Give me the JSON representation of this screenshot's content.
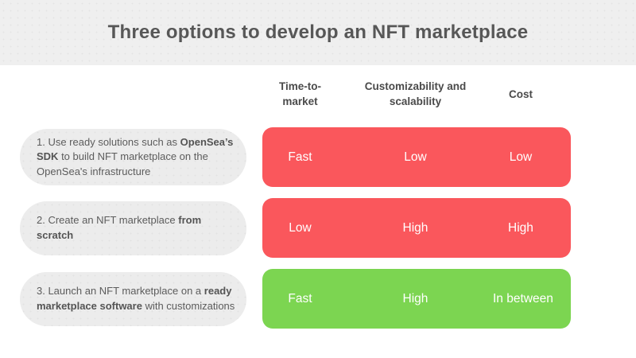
{
  "title": "Three options to develop an NFT marketplace",
  "columns": [
    {
      "label": "Time-to-market"
    },
    {
      "label": "Customizability and scalability"
    },
    {
      "label": "Cost"
    }
  ],
  "rows": [
    {
      "text_before": "1. Use ready solutions such as ",
      "text_bold": "OpenSea’s SDK",
      "text_after": " to build NFT marketplace on the OpenSea's infrastructure",
      "values": [
        "Fast",
        "Low",
        "Low"
      ],
      "color": "#fa575c"
    },
    {
      "text_before": "2. Create an NFT marketplace ",
      "text_bold": "from scratch",
      "text_after": "",
      "values": [
        "Low",
        "High",
        "High"
      ],
      "color": "#fa575c"
    },
    {
      "text_before": "3. Launch an NFT marketplace on a ",
      "text_bold": "ready marketplace software",
      "text_after": " with customizations",
      "values": [
        "Fast",
        "High",
        "In between"
      ],
      "color": "#7cd551"
    }
  ],
  "colors": {
    "band_bg": "#efefef",
    "pill_bg": "#ececec",
    "negative_bar": "#fa575c",
    "positive_bar": "#7cd551",
    "title_text": "#575757",
    "header_text": "#4a4a4a",
    "pill_text": "#5c5c5c",
    "value_text": "#ffffff"
  }
}
